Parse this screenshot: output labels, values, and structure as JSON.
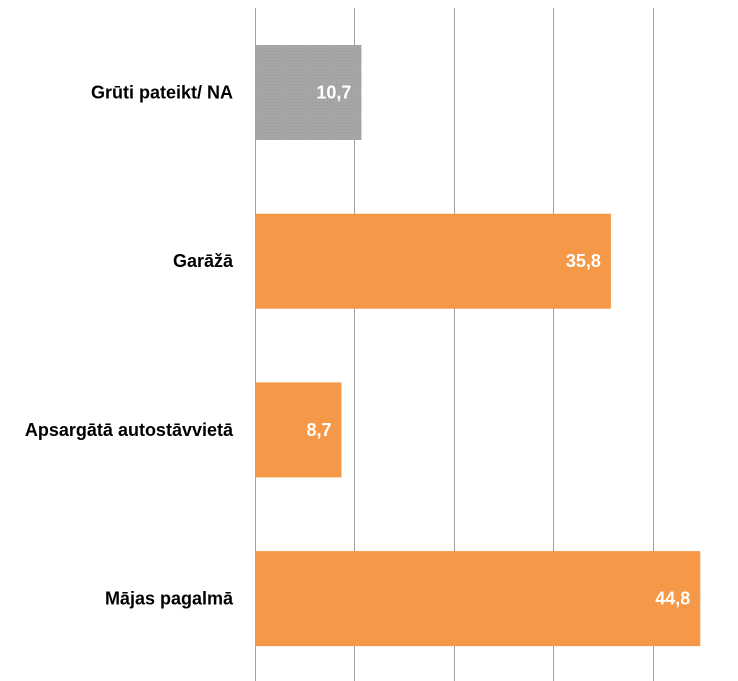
{
  "chart_data": {
    "type": "bar",
    "orientation": "horizontal",
    "categories": [
      "Grūti pateikt/ NA",
      "Garāžā",
      "Apsargātā autostāvvietā",
      "Mājas pagalmā"
    ],
    "values": [
      10.7,
      35.8,
      8.7,
      44.8
    ],
    "value_labels": [
      "10,7",
      "35,8",
      "8,7",
      "44,8"
    ],
    "xlim": [
      0,
      50
    ],
    "x_gridlines": [
      0,
      10,
      20,
      30,
      40,
      50
    ],
    "grid": true,
    "legend": "none",
    "colors": {
      "bar": "#f59847",
      "bar_na": "#a6a6a6",
      "na_pattern": "#9a9a9a",
      "gridline": "#a0a0a0"
    }
  }
}
